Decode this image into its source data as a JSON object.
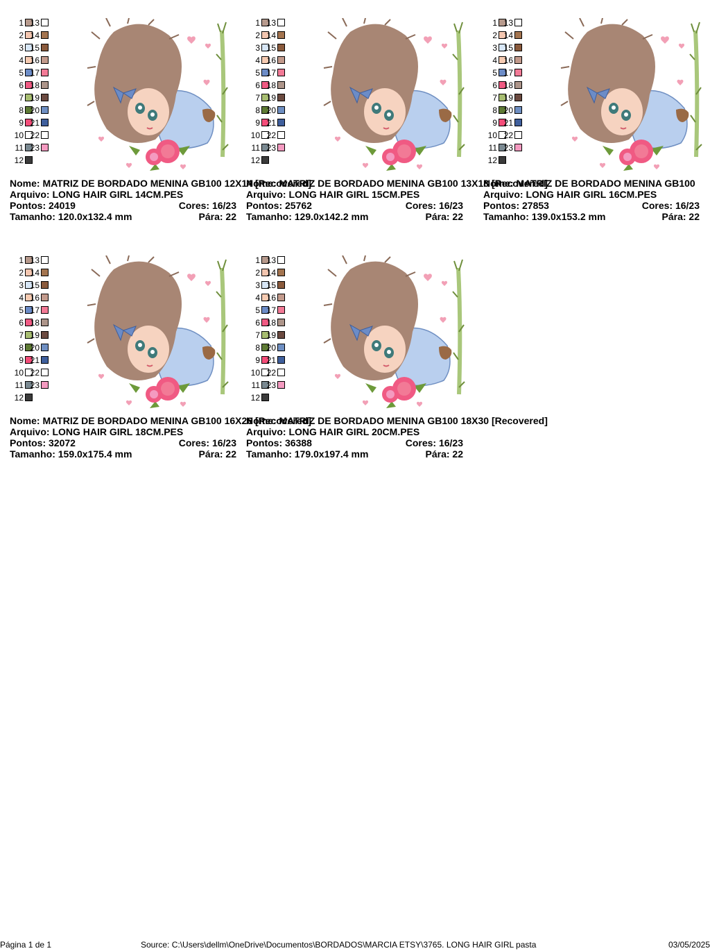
{
  "palette": {
    "left": [
      {
        "n": "1",
        "c": "#b79a8d"
      },
      {
        "n": "2",
        "c": "#f3c6b0"
      },
      {
        "n": "3",
        "c": "#d7e6f6"
      },
      {
        "n": "4",
        "c": "#f6cbb2"
      },
      {
        "n": "5",
        "c": "#6c8cc7"
      },
      {
        "n": "6",
        "c": "#f05a83"
      },
      {
        "n": "7",
        "c": "#a7bd71"
      },
      {
        "n": "8",
        "c": "#5e7a34"
      },
      {
        "n": "9",
        "c": "#f44d79"
      },
      {
        "n": "10",
        "c": "#ffffff"
      },
      {
        "n": "11",
        "c": "#7a8991"
      },
      {
        "n": "12",
        "c": "#3b3b3b"
      }
    ],
    "right": [
      {
        "n": "13",
        "c": "#ffffff"
      },
      {
        "n": "14",
        "c": "#a3744f"
      },
      {
        "n": "15",
        "c": "#8a5a3c"
      },
      {
        "n": "16",
        "c": "#c29a8c"
      },
      {
        "n": "17",
        "c": "#f27a96"
      },
      {
        "n": "18",
        "c": "#ad958a"
      },
      {
        "n": "19",
        "c": "#6b4a40"
      },
      {
        "n": "20",
        "c": "#6f8fc2"
      },
      {
        "n": "21",
        "c": "#3f5f9c"
      },
      {
        "n": "22",
        "c": "#ffffff"
      },
      {
        "n": "23",
        "c": "#f49ac0"
      }
    ]
  },
  "labels": {
    "nome": "Nome:",
    "arquivo": "Arquivo:",
    "pontos": "Pontos:",
    "cores": "Cores:",
    "tamanho": "Tamanho:",
    "para": "Pára:"
  },
  "designs": [
    {
      "nome": "MATRIZ DE BORDADO MENINA GB100 12X14 [Recovered]",
      "arquivo": "LONG HAIR GIRL 14CM.PES",
      "pontos": "24019",
      "cores": "16/23",
      "tamanho": "120.0x132.4 mm",
      "para": "22"
    },
    {
      "nome": "MATRIZ DE BORDADO MENINA GB100 13X18 [Recovered]",
      "arquivo": "LONG HAIR GIRL 15CM.PES",
      "pontos": "25762",
      "cores": "16/23",
      "tamanho": "129.0x142.2 mm",
      "para": "22"
    },
    {
      "nome": "MATRIZ DE BORDADO MENINA GB100",
      "arquivo": "LONG HAIR GIRL 16CM.PES",
      "pontos": "27853",
      "cores": "16/23",
      "tamanho": "139.0x153.2 mm",
      "para": "22"
    },
    {
      "nome": "MATRIZ DE BORDADO MENINA GB100 16X26 [Recovered]",
      "arquivo": "LONG HAIR GIRL 18CM.PES",
      "pontos": "32072",
      "cores": "16/23",
      "tamanho": "159.0x175.4 mm",
      "para": "22"
    },
    {
      "nome": "MATRIZ DE BORDADO MENINA GB100 18X30 [Recovered]",
      "arquivo": "LONG HAIR GIRL 20CM.PES",
      "pontos": "36388",
      "cores": "16/23",
      "tamanho": "179.0x197.4 mm",
      "para": "22"
    }
  ],
  "footer": {
    "page": "Página 1 de 1",
    "source": "Source: C:\\Users\\dellm\\OneDrive\\Documentos\\BORDADOS\\MARCIA ETSY\\3765. LONG HAIR GIRL pasta",
    "date": "03/05/2025"
  }
}
